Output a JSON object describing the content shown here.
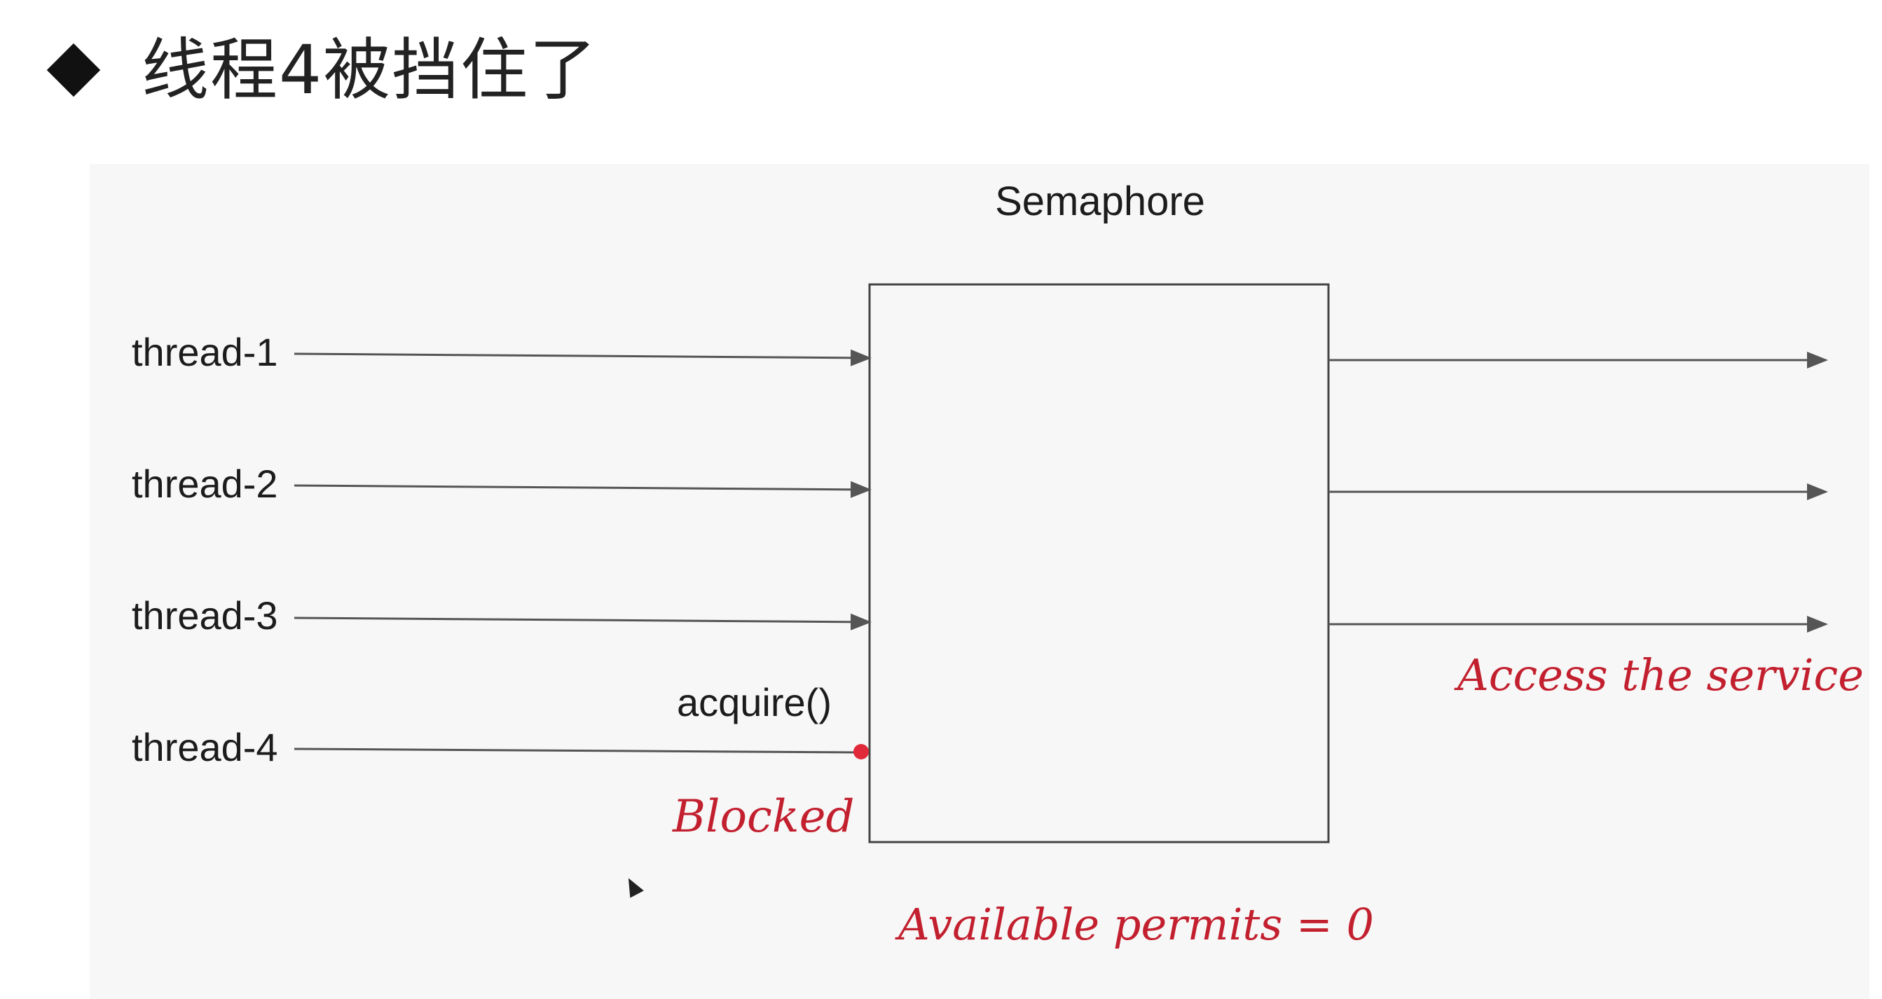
{
  "slide": {
    "title": "线程4被挡住了"
  },
  "diagram": {
    "box_label": "Semaphore",
    "threads": [
      "thread-1",
      "thread-2",
      "thread-3",
      "thread-4"
    ],
    "acquire_label": "acquire()",
    "blocked_label": "Blocked",
    "access_label": "Access the service",
    "permits_label": "Available permits = 0",
    "colors": {
      "line": "#555555",
      "box": "#444444",
      "accent_red": "#c3202f",
      "dot_red": "#e02a3a"
    }
  }
}
